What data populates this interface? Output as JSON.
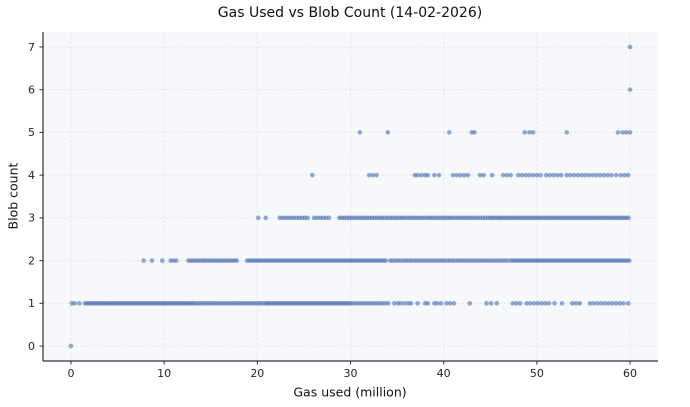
{
  "chart_data": {
    "type": "scatter",
    "title": "Gas Used vs Blob Count (14-02-2026)",
    "xlabel": "Gas used (million)",
    "ylabel": "Blob count",
    "xlim": [
      -3,
      63
    ],
    "ylim": [
      -0.35,
      7.35
    ],
    "xticks": [
      0,
      10,
      20,
      30,
      40,
      50,
      60
    ],
    "yticks": [
      0,
      1,
      2,
      3,
      4,
      5,
      6,
      7
    ],
    "grid": true,
    "legend": "none",
    "style": {
      "figure_bg": "#ffffff",
      "plot_bg": "#f7f8fb",
      "grid_color": "#e4e6ea",
      "spine_color": "#303030",
      "tick_label_color": "#262626",
      "marker_color": "#4c72b0",
      "marker_opacity": 0.6,
      "marker_radius_px": 2.3
    },
    "series": [
      {
        "name": "blob-count-0",
        "y": 0,
        "x": [
          0.0
        ]
      },
      {
        "name": "blob-count-1",
        "y": 1,
        "x": [
          0.1,
          0.4,
          0.9,
          {
            "from": 1.5,
            "to": 13.0,
            "step": 0.22
          },
          {
            "from": 13.15,
            "to": 21.0,
            "step": 0.26
          },
          {
            "from": 21.1,
            "to": 30.0,
            "step": 0.22
          },
          {
            "from": 30.15,
            "to": 34.3,
            "step": 0.3
          },
          34.7,
          35.1,
          35.4,
          35.8,
          36.2,
          36.5,
          37.2,
          38.0,
          38.3,
          39.0,
          39.3,
          39.7,
          40.3,
          40.7,
          41.1,
          42.8,
          44.6,
          45.1,
          45.7,
          47.4,
          47.8,
          48.2,
          48.9,
          49.3,
          49.7,
          50.1,
          50.5,
          50.9,
          51.3,
          51.9,
          52.7,
          53.8,
          54.2,
          54.6,
          55.7,
          56.1,
          56.5,
          56.9,
          57.3,
          57.7,
          58.1,
          58.5,
          58.9,
          59.3,
          59.8
        ]
      },
      {
        "name": "blob-count-2",
        "y": 2,
        "x": [
          7.8,
          8.7,
          9.8,
          10.7,
          11.0,
          11.3,
          {
            "from": 12.6,
            "to": 17.9,
            "step": 0.26
          },
          {
            "from": 18.9,
            "to": 34.0,
            "step": 0.24
          },
          {
            "from": 34.25,
            "to": 47.0,
            "step": 0.28
          },
          {
            "from": 47.2,
            "to": 60.0,
            "step": 0.24
          }
        ]
      },
      {
        "name": "blob-count-3",
        "y": 3,
        "x": [
          20.1,
          20.9,
          {
            "from": 22.4,
            "to": 25.4,
            "step": 0.3
          },
          {
            "from": 26.1,
            "to": 28.0,
            "step": 0.32
          },
          {
            "from": 28.8,
            "to": 45.0,
            "step": 0.27
          },
          {
            "from": 45.2,
            "to": 60.0,
            "step": 0.24
          }
        ]
      },
      {
        "name": "blob-count-4",
        "y": 4,
        "x": [
          25.9,
          32.0,
          32.4,
          32.8,
          36.9,
          37.2,
          37.6,
          38.0,
          38.3,
          39.0,
          39.5,
          41.0,
          41.4,
          41.8,
          42.2,
          42.6,
          43.9,
          44.3,
          45.2,
          46.4,
          46.8,
          47.2,
          48.0,
          48.4,
          48.8,
          49.2,
          49.6,
          50.0,
          50.4,
          51.0,
          51.4,
          51.8,
          52.2,
          52.6,
          53.2,
          53.6,
          54.0,
          54.4,
          54.8,
          55.2,
          55.6,
          56.0,
          56.4,
          56.8,
          57.2,
          57.6,
          58.0,
          58.5,
          59.0,
          59.4,
          59.8
        ]
      },
      {
        "name": "blob-count-5",
        "y": 5,
        "x": [
          31.0,
          34.0,
          40.6,
          43.0,
          43.3,
          48.7,
          49.2,
          49.6,
          53.2,
          58.7,
          59.2,
          59.6,
          60.0
        ]
      },
      {
        "name": "blob-count-6",
        "y": 6,
        "x": [
          60.0
        ]
      },
      {
        "name": "blob-count-7",
        "y": 7,
        "x": [
          60.0
        ]
      }
    ]
  }
}
